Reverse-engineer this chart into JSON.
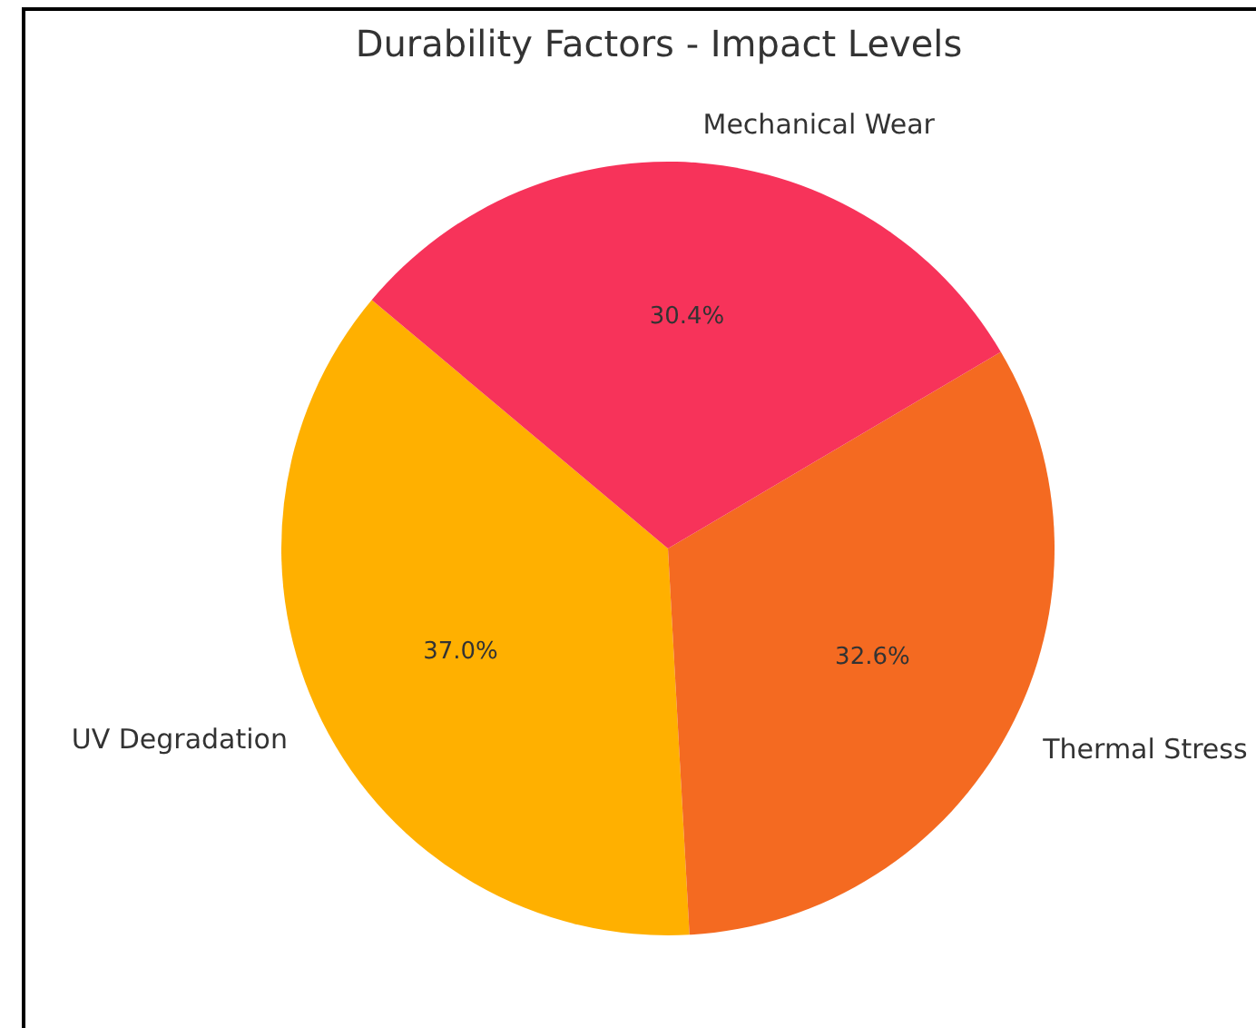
{
  "chart_data": {
    "type": "pie",
    "title": "Durability Factors - Impact Levels",
    "categories": [
      "UV Degradation",
      "Thermal Stress",
      "Mechanical Wear"
    ],
    "values": [
      37.0,
      32.6,
      30.4
    ],
    "colors": [
      "#ffb000",
      "#f46a21",
      "#f7335a"
    ],
    "value_labels": [
      "37.0%",
      "32.6%",
      "30.4%"
    ]
  }
}
